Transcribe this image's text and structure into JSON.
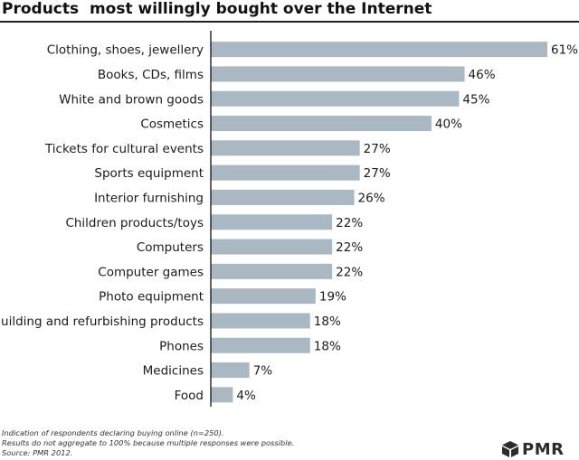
{
  "title": "Products  most willingly bought over the Internet",
  "chart_data": {
    "type": "bar",
    "orientation": "horizontal",
    "title": "Products  most willingly bought over the Internet",
    "xlabel": "",
    "ylabel": "",
    "value_suffix": "%",
    "xlim": [
      0,
      61
    ],
    "grid": false,
    "categories": [
      "Clothing, shoes, jewellery",
      "Books, CDs, films",
      "White and brown goods",
      "Cosmetics",
      "Tickets for cultural events",
      "Sports equipment",
      "Interior furnishing",
      "Children products/toys",
      "Computers",
      "Computer games",
      "Photo equipment",
      "Building and refurbishing products",
      "Phones",
      "Medicines",
      "Food"
    ],
    "values": [
      61,
      46,
      45,
      40,
      27,
      27,
      26,
      22,
      22,
      22,
      19,
      18,
      18,
      7,
      4
    ],
    "value_labels": [
      "61%",
      "46%",
      "45%",
      "40%",
      "27%",
      "27%",
      "26%",
      "22%",
      "22%",
      "22%",
      "19%",
      "18%",
      "18%",
      "7%",
      "4%"
    ],
    "bar_color": "#aab8c4"
  },
  "footnotes": [
    "Indication of respondents declaring buying online (n=250).",
    "Results do not aggregate to 100% because multiple responses were possible.",
    "Source: PMR 2012."
  ],
  "logo": {
    "text": "PMR",
    "icon": "pmr-cube-logo-icon"
  }
}
